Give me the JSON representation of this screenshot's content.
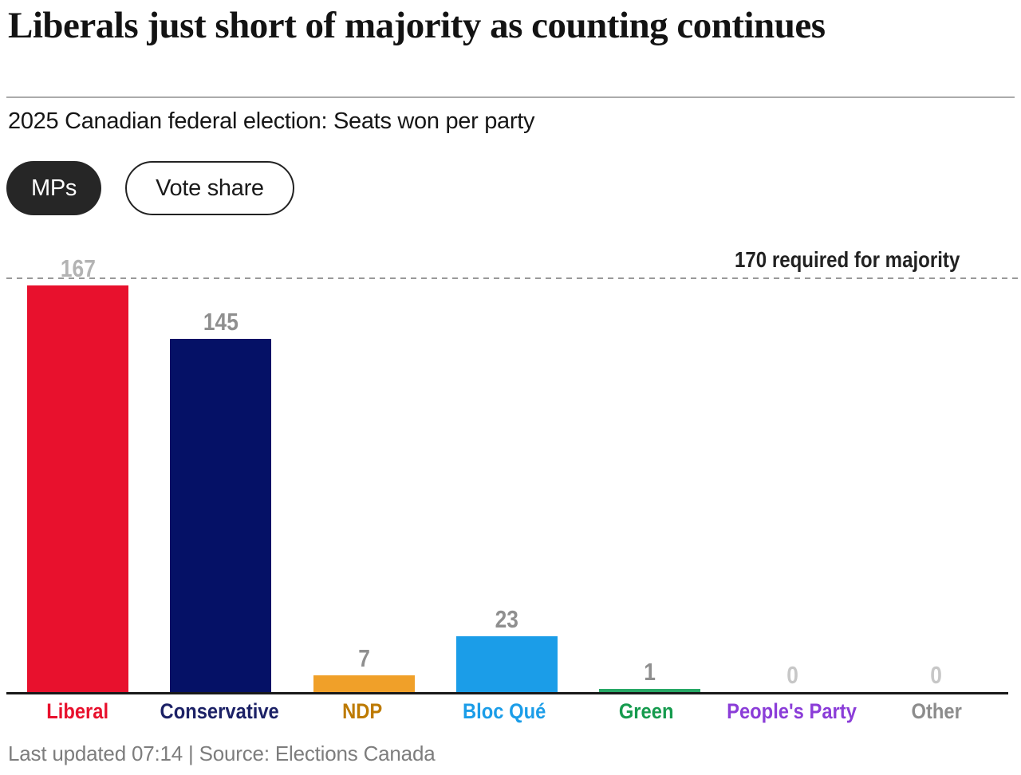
{
  "header": {
    "title": "Liberals just short of majority as counting continues",
    "subtitle": "2025 Canadian federal election: Seats won per party"
  },
  "toggles": [
    {
      "label": "MPs",
      "active": true
    },
    {
      "label": "Vote share",
      "active": false
    }
  ],
  "chart_data": {
    "type": "bar",
    "title": "2025 Canadian federal election: Seats won per party",
    "categories": [
      "Liberal",
      "Conservative",
      "NDP",
      "Bloc Qué",
      "Green",
      "People's Party",
      "Other"
    ],
    "values": [
      167,
      145,
      7,
      23,
      1,
      0,
      0
    ],
    "bar_colors": [
      "#e8112d",
      "#051166",
      "#f0a029",
      "#1b9de8",
      "#27a866",
      "#8b3dd8",
      "#8c8c8c"
    ],
    "category_label_colors": [
      "#e8112d",
      "#1c2166",
      "#bd7a00",
      "#1b9de8",
      "#169b4e",
      "#8b3dd8",
      "#8c8c8c"
    ],
    "value_label_colors": [
      "#b3b3b3",
      "#8f8f8f",
      "#8f8f8f",
      "#8f8f8f",
      "#8f8f8f",
      "#c7c7c7",
      "#c7c7c7"
    ],
    "majority_line": {
      "value": 170,
      "label": "170 required for majority"
    },
    "xlabel": "",
    "ylabel": "",
    "ylim": [
      0,
      178
    ],
    "grid": false,
    "legend": false
  },
  "footer": {
    "text": "Last updated 07:14 | Source: Elections Canada"
  }
}
